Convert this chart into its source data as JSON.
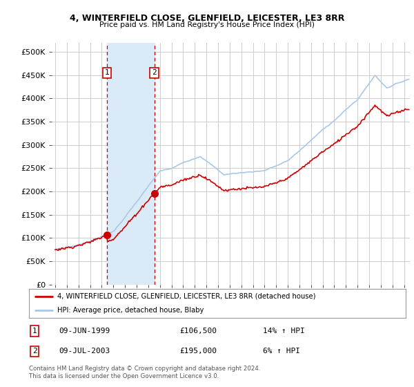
{
  "title": "4, WINTERFIELD CLOSE, GLENFIELD, LEICESTER, LE3 8RR",
  "subtitle": "Price paid vs. HM Land Registry's House Price Index (HPI)",
  "legend_line1": "4, WINTERFIELD CLOSE, GLENFIELD, LEICESTER, LE3 8RR (detached house)",
  "legend_line2": "HPI: Average price, detached house, Blaby",
  "transaction1_date": "09-JUN-1999",
  "transaction1_price": "£106,500",
  "transaction1_hpi": "14% ↑ HPI",
  "transaction2_date": "09-JUL-2003",
  "transaction2_price": "£195,000",
  "transaction2_hpi": "6% ↑ HPI",
  "footer": "Contains HM Land Registry data © Crown copyright and database right 2024.\nThis data is licensed under the Open Government Licence v3.0.",
  "yticks": [
    0,
    50000,
    100000,
    150000,
    200000,
    250000,
    300000,
    350000,
    400000,
    450000,
    500000
  ],
  "ytick_labels": [
    "£0",
    "£50K",
    "£100K",
    "£150K",
    "£200K",
    "£250K",
    "£300K",
    "£350K",
    "£400K",
    "£450K",
    "£500K"
  ],
  "ylim": [
    0,
    520000
  ],
  "xlim_min": 1994.7,
  "xlim_max": 2025.5,
  "hpi_color": "#a8c8e8",
  "price_color": "#cc0000",
  "marker1_x": 1999.44,
  "marker1_y": 106500,
  "marker2_x": 2003.52,
  "marker2_y": 195000,
  "vline1_x": 1999.44,
  "vline2_x": 2003.52,
  "shade_color": "#daeaf7",
  "background_color": "#ffffff",
  "grid_color": "#cccccc"
}
